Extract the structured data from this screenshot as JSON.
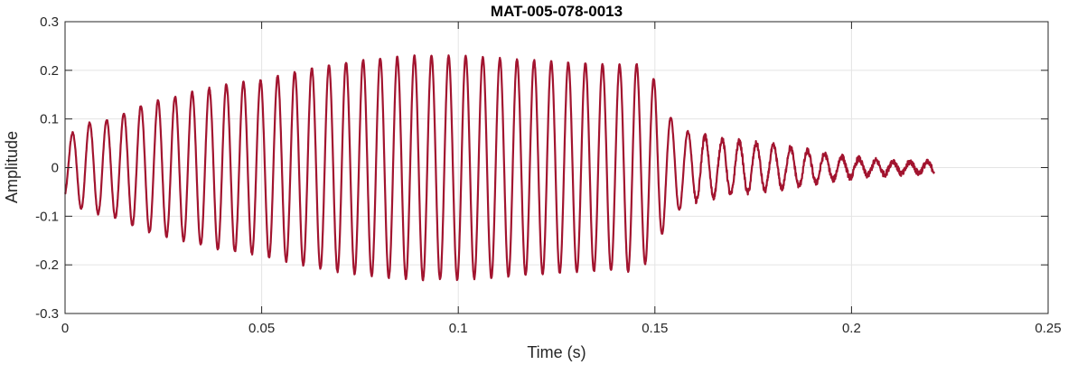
{
  "chart_data": {
    "type": "line",
    "title": "MAT-005-078-0013",
    "xlabel": "Time (s)",
    "ylabel": "Amplitude",
    "xlim": [
      0,
      0.25
    ],
    "ylim": [
      -0.3,
      0.3
    ],
    "x_ticks": [
      0,
      0.05,
      0.1,
      0.15,
      0.2,
      0.25
    ],
    "x_tick_labels": [
      "0",
      "0.05",
      "0.1",
      "0.15",
      "0.2",
      "0.25"
    ],
    "y_ticks": [
      -0.3,
      -0.2,
      -0.1,
      0,
      0.1,
      0.2,
      0.3
    ],
    "y_tick_labels": [
      "-0.3",
      "-0.2",
      "-0.1",
      "0",
      "0.1",
      "0.2",
      "0.3"
    ],
    "grid": true,
    "series": [
      {
        "color": "#a2142f",
        "duration": 0.221,
        "frequency_hz": 230,
        "start_value": -0.055,
        "envelope": [
          [
            0.0,
            0.06
          ],
          [
            0.005,
            0.09
          ],
          [
            0.012,
            0.1
          ],
          [
            0.02,
            0.13
          ],
          [
            0.03,
            0.15
          ],
          [
            0.04,
            0.17
          ],
          [
            0.05,
            0.18
          ],
          [
            0.06,
            0.2
          ],
          [
            0.07,
            0.215
          ],
          [
            0.08,
            0.225
          ],
          [
            0.09,
            0.23
          ],
          [
            0.1,
            0.23
          ],
          [
            0.11,
            0.225
          ],
          [
            0.12,
            0.22
          ],
          [
            0.13,
            0.215
          ],
          [
            0.14,
            0.21
          ],
          [
            0.145,
            0.215
          ],
          [
            0.15,
            0.18
          ],
          [
            0.153,
            0.11
          ],
          [
            0.158,
            0.075
          ],
          [
            0.165,
            0.06
          ],
          [
            0.175,
            0.05
          ],
          [
            0.185,
            0.04
          ],
          [
            0.195,
            0.025
          ],
          [
            0.205,
            0.015
          ],
          [
            0.215,
            0.012
          ],
          [
            0.221,
            0.01
          ]
        ]
      }
    ]
  }
}
